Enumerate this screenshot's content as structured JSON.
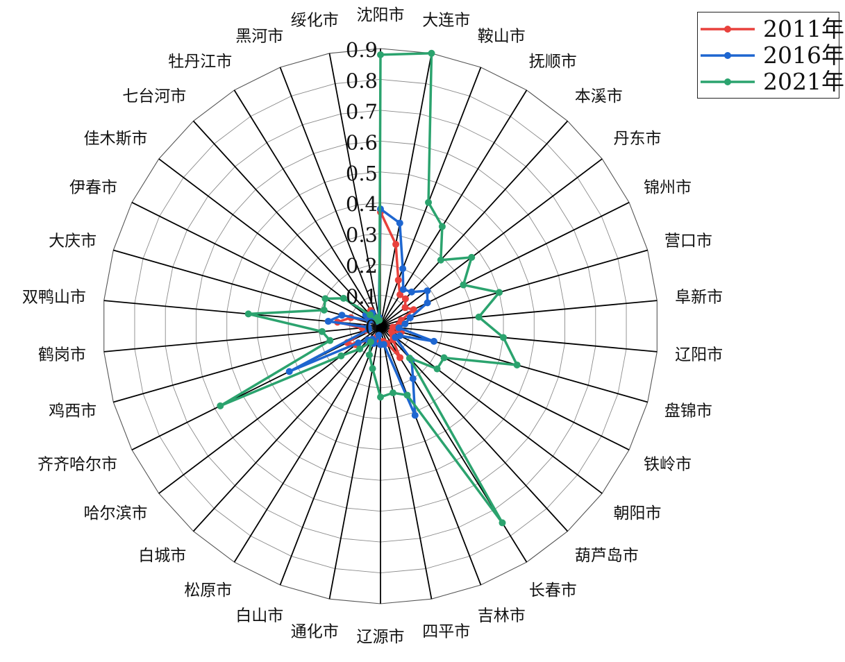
{
  "chart_data": {
    "type": "radar",
    "r_ticks": [
      "0",
      "0.1",
      "0.2",
      "0.3",
      "0.4",
      "0.5",
      "0.6",
      "0.7",
      "0.8",
      "0.9"
    ],
    "rlim": [
      0,
      0.9
    ],
    "grid": true,
    "legend_position": "top-right",
    "categories": [
      "沈阳市",
      "大连市",
      "鞍山市",
      "抚顺市",
      "本溪市",
      "丹东市",
      "锦州市",
      "营口市",
      "阜新市",
      "辽阳市",
      "盘锦市",
      "铁岭市",
      "朝阳市",
      "葫芦岛市",
      "长春市",
      "吉林市",
      "四平市",
      "辽源市",
      "通化市",
      "白山市",
      "松原市",
      "白城市",
      "哈尔滨市",
      "齐齐哈尔市",
      "鸡西市",
      "鹤岗市",
      "双鸭山市",
      "大庆市",
      "伊春市",
      "佳木斯市",
      "七台河市",
      "牡丹江市",
      "黑河市",
      "绥化市"
    ],
    "series": [
      {
        "name": "2011年",
        "color": "#E8413C",
        "values": [
          0.37,
          0.27,
          0.16,
          0.12,
          0.12,
          0.1,
          0.12,
          0.07,
          0.06,
          0.04,
          0.07,
          0.04,
          0.05,
          0.06,
          0.12,
          0.06,
          0.05,
          0.06,
          0.05,
          0.04,
          0.05,
          0.06,
          0.1,
          0.12,
          0.05,
          0.06,
          0.14,
          0.1,
          0.04,
          0.05,
          0.02,
          0.06,
          0.02,
          0.02
        ]
      },
      {
        "name": "2016年",
        "color": "#1E66D0",
        "values": [
          0.38,
          0.34,
          0.2,
          0.14,
          0.15,
          0.19,
          0.17,
          0.1,
          0.08,
          0.06,
          0.18,
          0.07,
          0.06,
          0.15,
          0.2,
          0.31,
          0.06,
          0.06,
          0.03,
          0.06,
          0.05,
          0.06,
          0.09,
          0.33,
          0.04,
          0.04,
          0.17,
          0.13,
          0.04,
          0.06,
          0.02,
          0.05,
          0.03,
          0.03
        ]
      },
      {
        "name": "2021年",
        "color": "#2BA36E",
        "values": [
          0.88,
          0.9,
          0.43,
          0.38,
          0.29,
          0.37,
          0.3,
          0.4,
          0.32,
          0.4,
          0.46,
          0.23,
          0.23,
          0.14,
          0.75,
          0.24,
          0.22,
          0.23,
          0.14,
          0.1,
          0.06,
          0.1,
          0.16,
          0.58,
          0.17,
          0.19,
          0.43,
          0.19,
          0.2,
          0.15,
          0.05,
          0.02,
          0.03,
          0.02
        ]
      }
    ]
  }
}
